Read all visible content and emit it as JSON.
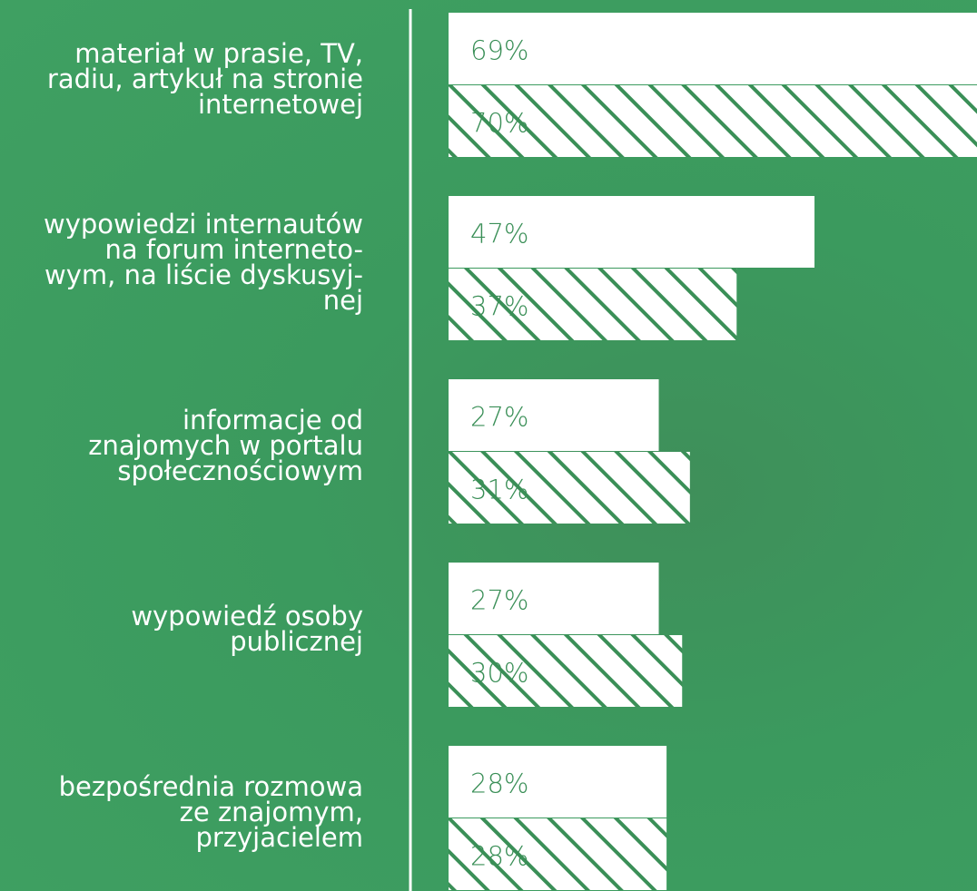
{
  "chart_data": {
    "type": "bar",
    "categories": [
      "materiał w prasie, TV,\nradiu, artykuł na stronie\ninternetowej",
      "wypowiedzi internautów\nna forum interneto-\nwym, na liście dyskusyj-\nnej",
      "informacje od\nznajomych w portalu\nspołecznościowym",
      "wypowiedź osoby\npublicznej",
      "bezpośrednia rozmowa\nze znajomym,\nprzyjacielem"
    ],
    "series": [
      {
        "color": "#ffffff",
        "values": [
          69,
          47,
          27,
          27,
          28
        ],
        "value_labels": [
          "69%",
          "47%",
          "27%",
          "27%",
          "28%"
        ]
      },
      {
        "color": "#ffffff",
        "hatch": "#3a8f57",
        "values": [
          70,
          37,
          31,
          30,
          28
        ],
        "value_labels": [
          "70%",
          "37%",
          "31%",
          "30%",
          "28%"
        ]
      }
    ]
  }
}
